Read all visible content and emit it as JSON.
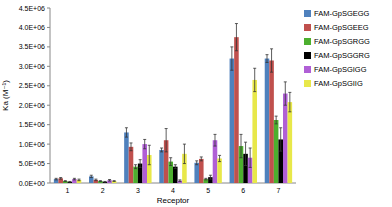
{
  "chart_data": {
    "type": "bar",
    "x_label": "Receptor",
    "y_label": "Ka (M⁻¹)",
    "categories": [
      "1",
      "2",
      "3",
      "4",
      "5",
      "6",
      "7"
    ],
    "series": [
      {
        "name": "FAM-GpSGEGG",
        "color": "#4f81bd",
        "values": [
          100000,
          170000,
          1300000,
          850000,
          520000,
          3200000,
          3200000
        ],
        "errors": [
          20000,
          30000,
          120000,
          50000,
          50000,
          300000,
          100000
        ]
      },
      {
        "name": "FAM-GpSGEEG",
        "color": "#c0504d",
        "values": [
          120000,
          80000,
          930000,
          1100000,
          620000,
          3750000,
          3150000
        ],
        "errors": [
          20000,
          20000,
          100000,
          300000,
          50000,
          350000,
          300000
        ]
      },
      {
        "name": "FAM-GpSGRGG",
        "color": "#4caf2e",
        "values": [
          50000,
          50000,
          420000,
          550000,
          100000,
          950000,
          1620000
        ],
        "errors": [
          10000,
          10000,
          50000,
          100000,
          20000,
          300000,
          100000
        ]
      },
      {
        "name": "FAM-GpSGGRG",
        "color": "#000000",
        "values": [
          30000,
          30000,
          500000,
          420000,
          150000,
          750000,
          1120000
        ],
        "errors": [
          10000,
          10000,
          100000,
          50000,
          50000,
          300000,
          300000
        ]
      },
      {
        "name": "FAM-GpSGIGG",
        "color": "#b05fd6",
        "values": [
          100000,
          70000,
          1000000,
          60000,
          1100000,
          650000,
          2300000
        ],
        "errors": [
          20000,
          20000,
          120000,
          20000,
          150000,
          250000,
          300000
        ]
      },
      {
        "name": "FAM-GpSGIIG",
        "color": "#e8e84a",
        "values": [
          80000,
          50000,
          720000,
          750000,
          630000,
          2650000,
          2080000
        ],
        "errors": [
          20000,
          10000,
          250000,
          250000,
          80000,
          300000,
          250000
        ]
      }
    ],
    "ylim": [
      0,
      4500000
    ],
    "yticks": [
      {
        "value": 0,
        "label": "0.0E+00"
      },
      {
        "value": 500000,
        "label": "5.0E+05"
      },
      {
        "value": 1000000,
        "label": "1.0E+06"
      },
      {
        "value": 1500000,
        "label": "1.5E+06"
      },
      {
        "value": 2000000,
        "label": "2.0E+06"
      },
      {
        "value": 2500000,
        "label": "2.5E+06"
      },
      {
        "value": 3000000,
        "label": "3.0E+06"
      },
      {
        "value": 3500000,
        "label": "3.5E+06"
      },
      {
        "value": 4000000,
        "label": "4.0E+06"
      },
      {
        "value": 4500000,
        "label": "4.5E+06"
      }
    ],
    "grid": false,
    "legend": "right"
  }
}
